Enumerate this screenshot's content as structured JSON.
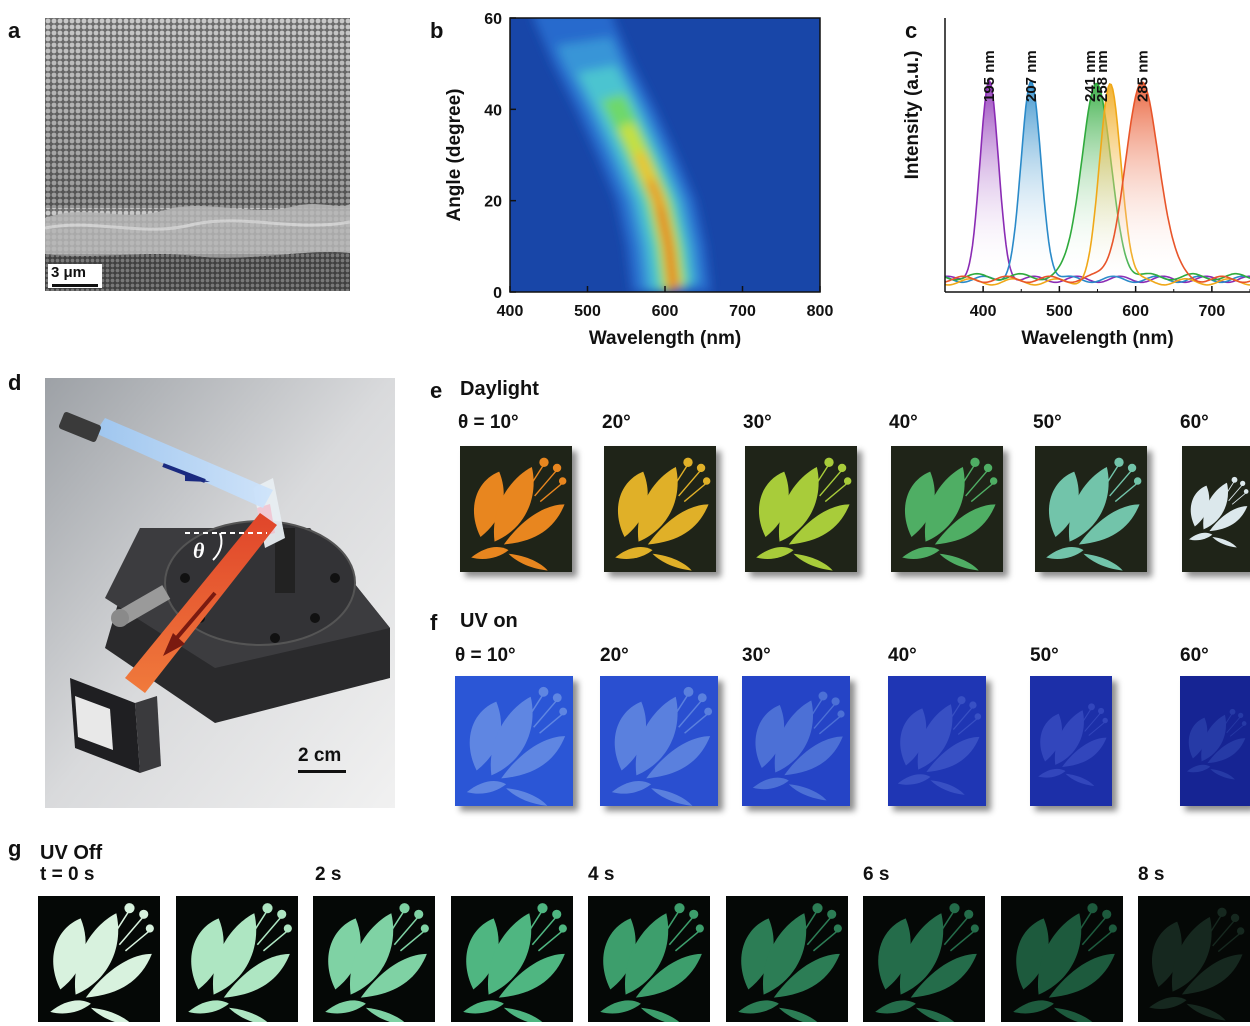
{
  "panel_labels": {
    "a": "a",
    "b": "b",
    "c": "c",
    "d": "d",
    "e": "e",
    "f": "f",
    "g": "g"
  },
  "panel_a": {
    "scale_bar": "3 μm"
  },
  "panel_d": {
    "scale_bar": "2 cm",
    "angle_symbol": "θ"
  },
  "panel_e": {
    "title": "Daylight",
    "angles": [
      "θ = 10°",
      "20°",
      "30°",
      "40°",
      "50°",
      "60°"
    ],
    "tile_colors": [
      "#e8861f",
      "#e0b028",
      "#a8cc3a",
      "#4fae64",
      "#72c4aa",
      "#dce8ec"
    ]
  },
  "panel_f": {
    "title": "UV on",
    "angles": [
      "θ = 10°",
      "20°",
      "30°",
      "40°",
      "50°",
      "60°"
    ],
    "tile_bg": [
      "#2b56d6",
      "#2a4fd0",
      "#2544c6",
      "#1f36b4",
      "#1c2fa8",
      "#162493"
    ],
    "tile_fg": [
      "#5f86e2",
      "#5a80de",
      "#4c70d6",
      "#3850c4",
      "#3246bc",
      "#263aa6"
    ]
  },
  "panel_g": {
    "title": "UV Off",
    "times": [
      "t = 0 s",
      "2 s",
      "4 s",
      "6 s",
      "8 s"
    ],
    "tile_colors": [
      "#d8f2de",
      "#aee6c2",
      "#7fd2a4",
      "#4fb681",
      "#3d9e6c",
      "#2c7d55",
      "#246c4a",
      "#1d5a3d",
      "#16281f"
    ]
  },
  "chart_data": [
    {
      "type": "heatmap",
      "panel": "b",
      "xlabel": "Wavelength (nm)",
      "ylabel": "Angle (degree)",
      "xlim": [
        400,
        800
      ],
      "ylim": [
        0,
        60
      ],
      "xticks": [
        400,
        500,
        600,
        700,
        800
      ],
      "yticks": [
        0,
        20,
        40,
        60
      ],
      "ridge": {
        "angle": [
          0,
          10,
          20,
          30,
          40,
          50,
          60
        ],
        "peak_wavelength": [
          612,
          605,
          592,
          567,
          540,
          510,
          485
        ]
      }
    },
    {
      "type": "line",
      "panel": "c",
      "xlabel": "Wavelength (nm)",
      "ylabel": "Intensity (a.u.)",
      "xlim": [
        350,
        750
      ],
      "xticks": [
        400,
        500,
        600,
        700
      ],
      "series": [
        {
          "name": "195 nm",
          "color": "#8a2bb4",
          "peak": 408,
          "width": 12,
          "base": 0.05
        },
        {
          "name": "207 nm",
          "color": "#2a8ac9",
          "peak": 463,
          "width": 13,
          "base": 0.05
        },
        {
          "name": "241 nm",
          "color": "#2faa3c",
          "peak": 548,
          "width": 19,
          "base": 0.06
        },
        {
          "name": "258 nm",
          "color": "#f0a818",
          "peak": 567,
          "width": 14,
          "base": 0.04
        },
        {
          "name": "285 nm",
          "color": "#e8552a",
          "peak": 609,
          "width": 22,
          "base": 0.05
        }
      ]
    }
  ]
}
